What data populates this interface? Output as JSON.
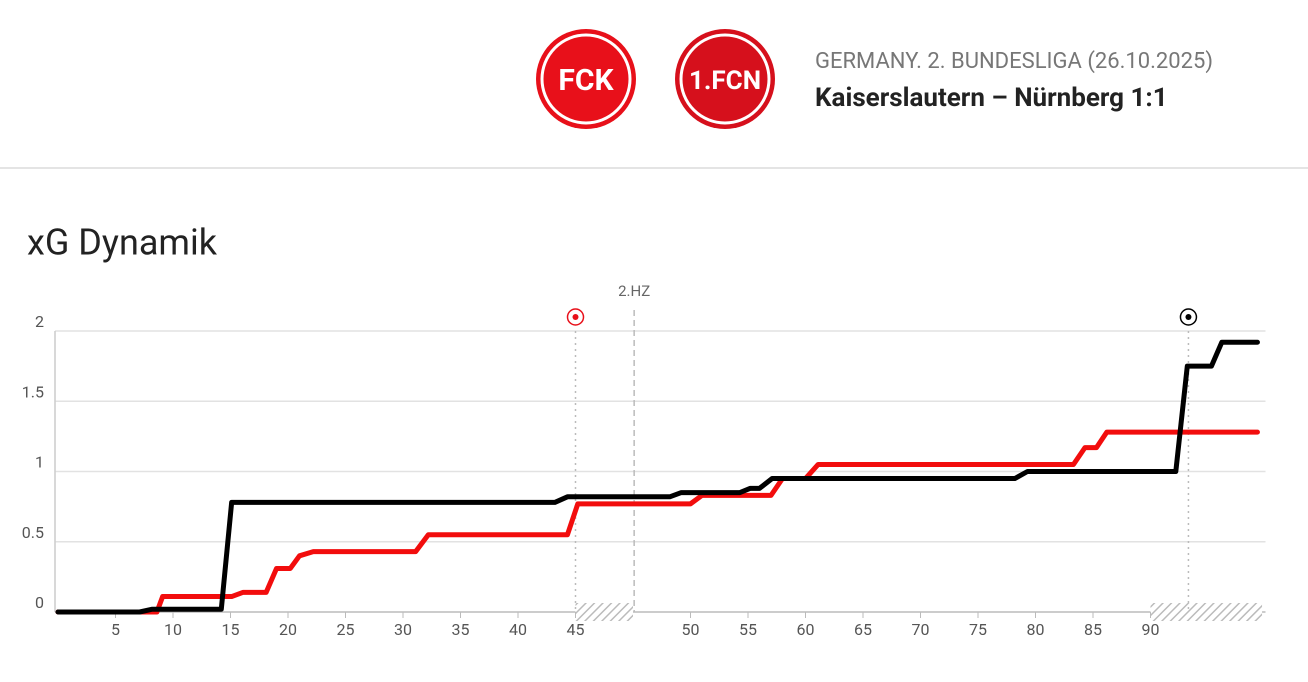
{
  "header": {
    "home_logo": "FCK",
    "away_logo": "1.FCN",
    "competition": "GERMANY. 2. BUNDESLIGA (26.10.2025)",
    "match": "Kaiserslautern – Nürnberg 1:1"
  },
  "chart_data": {
    "type": "line",
    "title": "xG Dynamik",
    "xlim": [
      0,
      105
    ],
    "ylim": [
      0,
      2
    ],
    "xticks": [
      5,
      10,
      15,
      20,
      25,
      30,
      35,
      40,
      45,
      {
        "value": 55,
        "label": "50"
      },
      {
        "value": 60,
        "label": "55"
      },
      {
        "value": 65,
        "label": "60"
      },
      {
        "value": 70,
        "label": "65"
      },
      {
        "value": 75,
        "label": "70"
      },
      {
        "value": 80,
        "label": "75"
      },
      {
        "value": 85,
        "label": "80"
      },
      {
        "value": 90,
        "label": "85"
      },
      {
        "value": 95,
        "label": "90"
      }
    ],
    "yticks": [
      0,
      0.5,
      1,
      1.5,
      2
    ],
    "grid": true,
    "annotations": [
      {
        "x": 50.1,
        "text": "2.HZ"
      }
    ],
    "markers": [
      {
        "x": 45,
        "color": "#e8101a"
      },
      {
        "x": 98.3,
        "color": "#000000"
      }
    ],
    "shaded": [
      [
        45,
        50
      ],
      [
        95,
        104.7
      ]
    ],
    "series": [
      {
        "color": "#f20d0d",
        "x": [
          0,
          7.1,
          8.6,
          9.1,
          15.1,
          16.1,
          18.1,
          19.0,
          20.2,
          21.0,
          22.2,
          31.1,
          32.2,
          44.3,
          45.2,
          55.0,
          56.0,
          62.0,
          63.0,
          65.0,
          66.1,
          88.3,
          89.3,
          90.3,
          91.2,
          104.3
        ],
        "values": [
          0,
          0,
          0,
          0.11,
          0.11,
          0.14,
          0.14,
          0.31,
          0.31,
          0.4,
          0.43,
          0.43,
          0.55,
          0.55,
          0.77,
          0.77,
          0.83,
          0.83,
          0.95,
          0.95,
          1.05,
          1.05,
          1.17,
          1.17,
          1.28,
          1.28
        ]
      },
      {
        "color": "#000000",
        "x": [
          0,
          7.1,
          8.2,
          14.2,
          15.1,
          43.2,
          44.3,
          53.2,
          54.2,
          59.3,
          60.2,
          61.0,
          62.1,
          83.2,
          84.3,
          97.2,
          98.2,
          100.3,
          101.2,
          104.3
        ],
        "values": [
          0,
          0,
          0.02,
          0.02,
          0.78,
          0.78,
          0.82,
          0.82,
          0.85,
          0.85,
          0.88,
          0.88,
          0.95,
          0.95,
          1.0,
          1.0,
          1.75,
          1.75,
          1.92,
          1.92
        ]
      }
    ]
  }
}
